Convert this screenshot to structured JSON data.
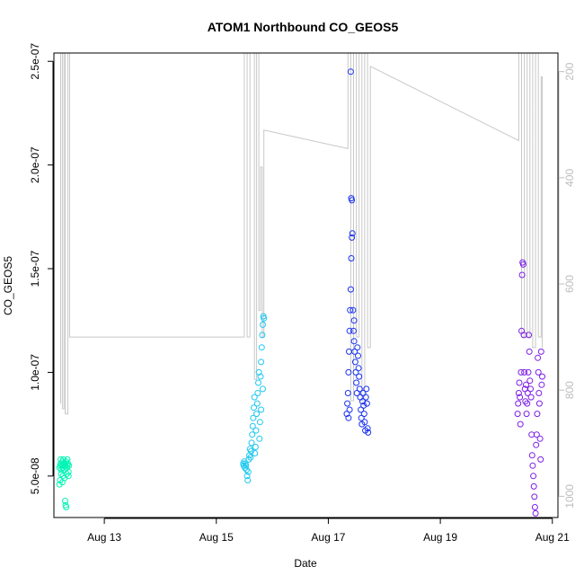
{
  "chart_data": {
    "type": "scatter",
    "title": "ATOM1 Northbound CO_GEOS5",
    "xlabel": "Date",
    "ylabel": "CO_GEOS5",
    "x_unit": "day of August",
    "xlim": [
      12.1,
      21.1
    ],
    "ylim": [
      3e-08,
      2.54e-07
    ],
    "x_ticks": [
      {
        "value": 13,
        "label": "Aug 13"
      },
      {
        "value": 15,
        "label": "Aug 15"
      },
      {
        "value": 17,
        "label": "Aug 17"
      },
      {
        "value": 19,
        "label": "Aug 19"
      },
      {
        "value": 21,
        "label": "Aug 21"
      }
    ],
    "y_ticks": [
      {
        "value": 5e-08,
        "label": "5.0e-08"
      },
      {
        "value": 1e-07,
        "label": "1.0e-07"
      },
      {
        "value": 1.5e-07,
        "label": "1.5e-07"
      },
      {
        "value": 2e-07,
        "label": "2.0e-07"
      },
      {
        "value": 2.5e-07,
        "label": "2.5e-07"
      }
    ],
    "y2_reversed": true,
    "y2lim": [
      1040,
      165
    ],
    "y2_ticks": [
      200,
      400,
      600,
      800,
      1000
    ],
    "colors": {
      "segment1": "#00f5b4",
      "segment2": "#1ec8f0",
      "segment3": "#1a32f0",
      "segment4": "#7d1ee6",
      "pressure": "#c8c8c8"
    },
    "grid": false,
    "pressure_series": [
      {
        "x": 12.22,
        "y": 825
      },
      {
        "x": 12.22,
        "y": 165
      },
      {
        "x": 12.25,
        "y": 165
      },
      {
        "x": 12.25,
        "y": 835
      },
      {
        "x": 12.28,
        "y": 835
      },
      {
        "x": 12.28,
        "y": 165
      },
      {
        "x": 12.3,
        "y": 165
      },
      {
        "x": 12.3,
        "y": 845
      },
      {
        "x": 12.35,
        "y": 845
      },
      {
        "x": 12.35,
        "y": 165
      },
      {
        "x": 12.38,
        "y": 165
      },
      {
        "x": 12.38,
        "y": 700
      },
      {
        "x": 15.5,
        "y": 700
      },
      {
        "x": 15.5,
        "y": 165
      },
      {
        "x": 15.55,
        "y": 165
      },
      {
        "x": 15.55,
        "y": 700
      },
      {
        "x": 15.6,
        "y": 700
      },
      {
        "x": 15.6,
        "y": 165
      },
      {
        "x": 15.68,
        "y": 165
      },
      {
        "x": 15.68,
        "y": 780
      },
      {
        "x": 15.72,
        "y": 780
      },
      {
        "x": 15.72,
        "y": 165
      },
      {
        "x": 15.76,
        "y": 165
      },
      {
        "x": 15.76,
        "y": 650
      },
      {
        "x": 15.79,
        "y": 650
      },
      {
        "x": 15.79,
        "y": 380
      },
      {
        "x": 15.82,
        "y": 380
      },
      {
        "x": 15.82,
        "y": 700
      },
      {
        "x": 15.85,
        "y": 700
      },
      {
        "x": 15.85,
        "y": 310
      },
      {
        "x": 17.35,
        "y": 345
      },
      {
        "x": 17.35,
        "y": 165
      },
      {
        "x": 17.4,
        "y": 165
      },
      {
        "x": 17.4,
        "y": 820
      },
      {
        "x": 17.45,
        "y": 820
      },
      {
        "x": 17.45,
        "y": 165
      },
      {
        "x": 17.5,
        "y": 165
      },
      {
        "x": 17.5,
        "y": 700
      },
      {
        "x": 17.55,
        "y": 700
      },
      {
        "x": 17.55,
        "y": 165
      },
      {
        "x": 17.6,
        "y": 165
      },
      {
        "x": 17.6,
        "y": 820
      },
      {
        "x": 17.65,
        "y": 820
      },
      {
        "x": 17.65,
        "y": 165
      },
      {
        "x": 17.7,
        "y": 165
      },
      {
        "x": 17.7,
        "y": 720
      },
      {
        "x": 17.75,
        "y": 720
      },
      {
        "x": 17.75,
        "y": 190
      },
      {
        "x": 20.4,
        "y": 330
      },
      {
        "x": 20.4,
        "y": 165
      },
      {
        "x": 20.45,
        "y": 165
      },
      {
        "x": 20.45,
        "y": 700
      },
      {
        "x": 20.5,
        "y": 700
      },
      {
        "x": 20.5,
        "y": 165
      },
      {
        "x": 20.55,
        "y": 165
      },
      {
        "x": 20.55,
        "y": 700
      },
      {
        "x": 20.6,
        "y": 700
      },
      {
        "x": 20.6,
        "y": 165
      },
      {
        "x": 20.65,
        "y": 165
      },
      {
        "x": 20.65,
        "y": 720
      },
      {
        "x": 20.7,
        "y": 720
      },
      {
        "x": 20.7,
        "y": 165
      },
      {
        "x": 20.75,
        "y": 165
      },
      {
        "x": 20.75,
        "y": 700
      },
      {
        "x": 20.8,
        "y": 700
      },
      {
        "x": 20.8,
        "y": 210
      },
      {
        "x": 20.82,
        "y": 210
      },
      {
        "x": 20.82,
        "y": 720
      }
    ],
    "points_segment1": [
      [
        12.2,
        5.4e-08
      ],
      [
        12.21,
        5.5e-08
      ],
      [
        12.22,
        5.6e-08
      ],
      [
        12.23,
        5.3e-08
      ],
      [
        12.24,
        5.5e-08
      ],
      [
        12.25,
        5.7e-08
      ],
      [
        12.26,
        5.4e-08
      ],
      [
        12.27,
        5.6e-08
      ],
      [
        12.28,
        5.5e-08
      ],
      [
        12.29,
        5.3e-08
      ],
      [
        12.3,
        5.6e-08
      ],
      [
        12.31,
        5.5e-08
      ],
      [
        12.32,
        5.7e-08
      ],
      [
        12.33,
        5.4e-08
      ],
      [
        12.34,
        5.5e-08
      ],
      [
        12.35,
        5.6e-08
      ],
      [
        12.36,
        5.2e-08
      ],
      [
        12.37,
        5.5e-08
      ],
      [
        12.21,
        4.8e-08
      ],
      [
        12.23,
        5.1e-08
      ],
      [
        12.26,
        5e-08
      ],
      [
        12.29,
        4.9e-08
      ],
      [
        12.33,
        5.1e-08
      ],
      [
        12.36,
        5e-08
      ],
      [
        12.3,
        3.8e-08
      ],
      [
        12.31,
        3.6e-08
      ],
      [
        12.32,
        3.5e-08
      ],
      [
        12.22,
        5.8e-08
      ],
      [
        12.27,
        5.8e-08
      ],
      [
        12.34,
        5.8e-08
      ],
      [
        12.2,
        4.6e-08
      ],
      [
        12.25,
        4.7e-08
      ]
    ],
    "points_segment2": [
      [
        15.48,
        5.6e-08
      ],
      [
        15.49,
        5.5e-08
      ],
      [
        15.5,
        5.7e-08
      ],
      [
        15.51,
        5.4e-08
      ],
      [
        15.52,
        5.6e-08
      ],
      [
        15.53,
        5.5e-08
      ],
      [
        15.54,
        5.3e-08
      ],
      [
        15.55,
        5e-08
      ],
      [
        15.56,
        4.8e-08
      ],
      [
        15.57,
        5.2e-08
      ],
      [
        15.58,
        5.8e-08
      ],
      [
        15.59,
        6e-08
      ],
      [
        15.6,
        6.3e-08
      ],
      [
        15.61,
        5.9e-08
      ],
      [
        15.62,
        6.2e-08
      ],
      [
        15.63,
        6.6e-08
      ],
      [
        15.64,
        7e-08
      ],
      [
        15.65,
        7.4e-08
      ],
      [
        15.66,
        7.8e-08
      ],
      [
        15.67,
        8.3e-08
      ],
      [
        15.68,
        8.8e-08
      ],
      [
        15.69,
        6.1e-08
      ],
      [
        15.7,
        6.4e-08
      ],
      [
        15.71,
        7.2e-08
      ],
      [
        15.72,
        8e-08
      ],
      [
        15.73,
        8.5e-08
      ],
      [
        15.74,
        9e-08
      ],
      [
        15.75,
        9.5e-08
      ],
      [
        15.76,
        1e-07
      ],
      [
        15.77,
        6.8e-08
      ],
      [
        15.78,
        7.6e-08
      ],
      [
        15.79,
        9.8e-08
      ],
      [
        15.8,
        1.05e-07
      ],
      [
        15.81,
        1.12e-07
      ],
      [
        15.82,
        1.18e-07
      ],
      [
        15.83,
        1.23e-07
      ],
      [
        15.84,
        1.27e-07
      ],
      [
        15.85,
        1.26e-07
      ],
      [
        15.8,
        8.2e-08
      ],
      [
        15.83,
        9.2e-08
      ]
    ],
    "points_segment3": [
      [
        17.33,
        8e-08
      ],
      [
        17.34,
        8.5e-08
      ],
      [
        17.35,
        9e-08
      ],
      [
        17.36,
        1e-07
      ],
      [
        17.37,
        1.1e-07
      ],
      [
        17.38,
        1.2e-07
      ],
      [
        17.39,
        1.3e-07
      ],
      [
        17.4,
        1.4e-07
      ],
      [
        17.41,
        1.55e-07
      ],
      [
        17.42,
        1.65e-07
      ],
      [
        17.43,
        1.67e-07
      ],
      [
        17.42,
        1.83e-07
      ],
      [
        17.41,
        1.84e-07
      ],
      [
        17.4,
        2.45e-07
      ],
      [
        17.44,
        1.3e-07
      ],
      [
        17.45,
        1.2e-07
      ],
      [
        17.46,
        1.15e-07
      ],
      [
        17.47,
        1.1e-07
      ],
      [
        17.48,
        1.05e-07
      ],
      [
        17.49,
        1e-07
      ],
      [
        17.5,
        9.5e-08
      ],
      [
        17.51,
        9e-08
      ],
      [
        17.52,
        1.12e-07
      ],
      [
        17.53,
        1.08e-07
      ],
      [
        17.54,
        1.02e-07
      ],
      [
        17.55,
        9.8e-08
      ],
      [
        17.56,
        9.2e-08
      ],
      [
        17.57,
        8.8e-08
      ],
      [
        17.58,
        8.2e-08
      ],
      [
        17.59,
        7.8e-08
      ],
      [
        17.6,
        7.5e-08
      ],
      [
        17.61,
        8.6e-08
      ],
      [
        17.62,
        9e-08
      ],
      [
        17.63,
        8.4e-08
      ],
      [
        17.64,
        8e-08
      ],
      [
        17.65,
        7.6e-08
      ],
      [
        17.66,
        7.2e-08
      ],
      [
        17.67,
        8.8e-08
      ],
      [
        17.68,
        9.2e-08
      ],
      [
        17.69,
        8.5e-08
      ],
      [
        17.7,
        7.3e-08
      ],
      [
        17.71,
        7.1e-08
      ],
      [
        17.36,
        7.8e-08
      ],
      [
        17.38,
        8.2e-08
      ],
      [
        17.46,
        1.25e-07
      ]
    ],
    "points_segment4": [
      [
        20.38,
        8e-08
      ],
      [
        20.39,
        8.5e-08
      ],
      [
        20.4,
        9e-08
      ],
      [
        20.41,
        9.5e-08
      ],
      [
        20.42,
        8.8e-08
      ],
      [
        20.43,
        7.5e-08
      ],
      [
        20.44,
        1e-07
      ],
      [
        20.45,
        1.2e-07
      ],
      [
        20.46,
        1.47e-07
      ],
      [
        20.47,
        1.53e-07
      ],
      [
        20.48,
        1.52e-07
      ],
      [
        20.49,
        1.18e-07
      ],
      [
        20.5,
        1e-07
      ],
      [
        20.51,
        9.2e-08
      ],
      [
        20.52,
        8.6e-08
      ],
      [
        20.53,
        9.4e-08
      ],
      [
        20.54,
        8e-08
      ],
      [
        20.55,
        8.5e-08
      ],
      [
        20.56,
        9e-08
      ],
      [
        20.57,
        1e-07
      ],
      [
        20.58,
        1.18e-07
      ],
      [
        20.59,
        1.1e-07
      ],
      [
        20.6,
        9.6e-08
      ],
      [
        20.61,
        9.2e-08
      ],
      [
        20.62,
        8.8e-08
      ],
      [
        20.63,
        7e-08
      ],
      [
        20.64,
        6e-08
      ],
      [
        20.65,
        5.5e-08
      ],
      [
        20.66,
        5e-08
      ],
      [
        20.67,
        4.5e-08
      ],
      [
        20.68,
        4e-08
      ],
      [
        20.69,
        3.5e-08
      ],
      [
        20.7,
        3.2e-08
      ],
      [
        20.71,
        6.5e-08
      ],
      [
        20.72,
        7e-08
      ],
      [
        20.73,
        8e-08
      ],
      [
        20.74,
        1.07e-07
      ],
      [
        20.75,
        1e-07
      ],
      [
        20.76,
        9e-08
      ],
      [
        20.77,
        8.5e-08
      ],
      [
        20.78,
        6.8e-08
      ],
      [
        20.79,
        5.8e-08
      ],
      [
        20.8,
        1.1e-07
      ],
      [
        20.81,
        9.4e-08
      ],
      [
        20.82,
        9.8e-08
      ]
    ]
  }
}
